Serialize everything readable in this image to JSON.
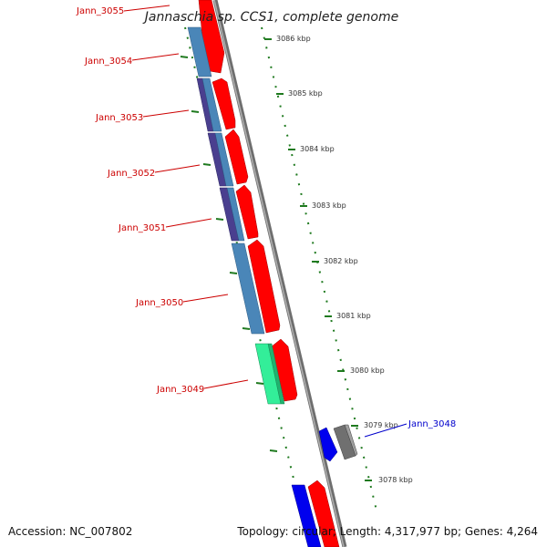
{
  "title": "Jannaschia sp. CCS1, complete genome",
  "footer": {
    "accession": "Accession: NC_007802",
    "summary": "Topology: circular; Length: 4,317,977 bp; Genes: 4,264"
  },
  "kbp_labels": [
    "3086 kbp",
    "3085 kbp",
    "3084 kbp",
    "3083 kbp",
    "3082 kbp",
    "3081 kbp",
    "3080 kbp",
    "3079 kbp",
    "3078 kbp"
  ],
  "gene_labels": [
    {
      "name": "Jann_3055",
      "color": "#cc0000"
    },
    {
      "name": "Jann_3054",
      "color": "#cc0000"
    },
    {
      "name": "Jann_3053",
      "color": "#cc0000"
    },
    {
      "name": "Jann_3052",
      "color": "#cc0000"
    },
    {
      "name": "Jann_3051",
      "color": "#cc0000"
    },
    {
      "name": "Jann_3050",
      "color": "#cc0000"
    },
    {
      "name": "Jann_3049",
      "color": "#cc0000"
    },
    {
      "name": "Jann_3048",
      "color": "#0000cc"
    }
  ],
  "colors": {
    "cds_red": "#ff0000",
    "steel_blue": "#4a86b8",
    "dark_indigo": "#4a3f8f",
    "green": "#33ee99",
    "blue": "#0000ee",
    "gray": "#707070",
    "dotted_green": "#1f7a1f",
    "backbone": "#808080"
  }
}
